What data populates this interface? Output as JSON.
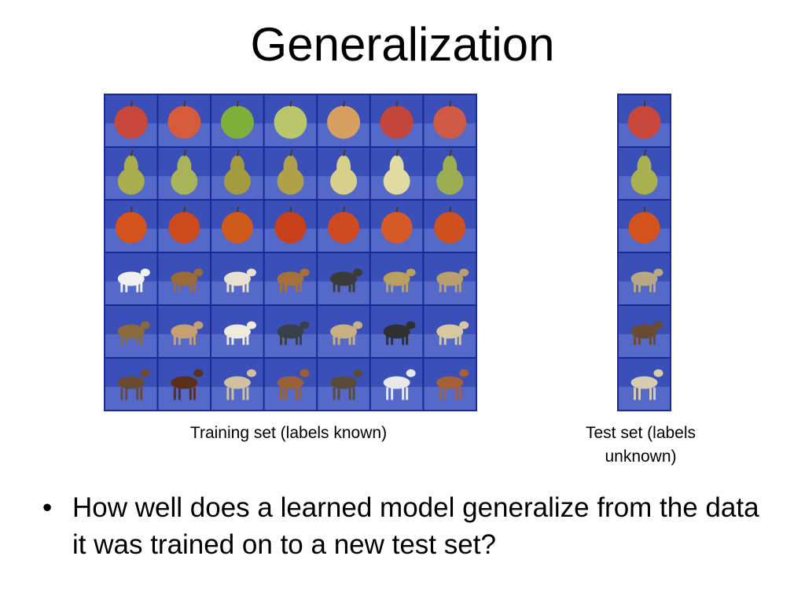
{
  "title": "Generalization",
  "training_caption": "Training set (labels known)",
  "test_caption": "Test set (labels unknown)",
  "bullets": [
    "How well does a learned model generalize from the data it was trained on to a new test set?"
  ]
}
